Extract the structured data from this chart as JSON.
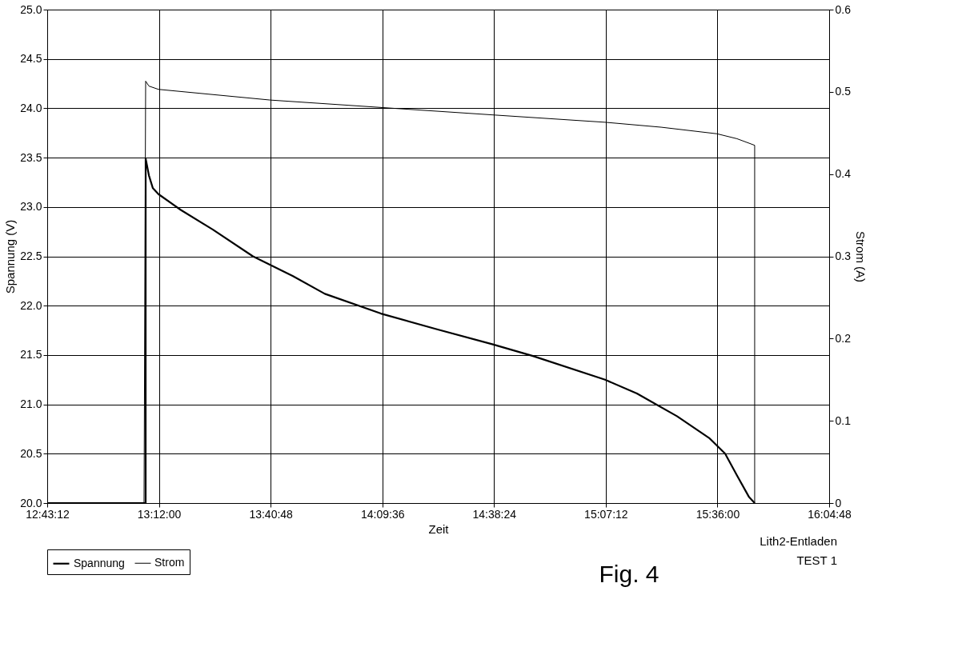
{
  "chart_data": {
    "type": "line",
    "xlabel": "Zeit",
    "ylabel": "Spannung (V)",
    "y2label": "Strom (A)",
    "annotations": [
      "Lith2-Entladen",
      "TEST 1",
      "Fig. 4"
    ],
    "series": [
      {
        "name": "Spannung",
        "color": "#000000",
        "x": [
          12.72,
          13.143,
          13.143,
          13.157,
          13.174,
          13.198,
          13.294,
          13.432,
          13.604,
          13.776,
          13.913,
          14.154,
          14.395,
          14.632,
          14.807,
          15.117,
          15.254,
          15.426,
          15.564,
          15.633,
          15.684,
          15.736,
          15.76
        ],
        "values": [
          20.0,
          20.0,
          23.49,
          23.32,
          23.19,
          23.13,
          22.97,
          22.77,
          22.5,
          22.3,
          22.12,
          21.92,
          21.76,
          21.61,
          21.49,
          21.25,
          21.11,
          20.88,
          20.66,
          20.5,
          20.28,
          20.06,
          20.0
        ]
      },
      {
        "name": "Strom",
        "color": "#000000",
        "axis": "y2",
        "x": [
          12.72,
          13.136,
          13.143,
          13.157,
          13.198,
          13.679,
          14.154,
          14.632,
          15.117,
          15.358,
          15.598,
          15.684,
          15.76,
          15.76
        ],
        "values": [
          0,
          0,
          0.513,
          0.507,
          0.503,
          0.49,
          0.481,
          0.472,
          0.463,
          0.457,
          0.449,
          0.443,
          0.435,
          0
        ]
      }
    ],
    "xlim": [
      12.72,
      16.08
    ],
    "xticks": [
      {
        "value": 12.72,
        "label": "12:43:12"
      },
      {
        "value": 13.2,
        "label": "13:12:00"
      },
      {
        "value": 13.68,
        "label": "13:40:48"
      },
      {
        "value": 14.16,
        "label": "14:09:36"
      },
      {
        "value": 14.64,
        "label": "14:38:24"
      },
      {
        "value": 15.12,
        "label": "15:07:12"
      },
      {
        "value": 15.6,
        "label": "15:36:00"
      },
      {
        "value": 16.08,
        "label": "16:04:48"
      }
    ],
    "ylim": [
      20.0,
      25.0
    ],
    "yticks": [
      {
        "value": 20,
        "label": "20.0"
      },
      {
        "value": 20.5,
        "label": "20.5"
      },
      {
        "value": 21,
        "label": "21.0"
      },
      {
        "value": 21.5,
        "label": "21.5"
      },
      {
        "value": 22,
        "label": "22.0"
      },
      {
        "value": 22.5,
        "label": "22.5"
      },
      {
        "value": 23,
        "label": "23.0"
      },
      {
        "value": 23.5,
        "label": "23.5"
      },
      {
        "value": 24,
        "label": "24.0"
      },
      {
        "value": 24.5,
        "label": "24.5"
      },
      {
        "value": 25,
        "label": "25.0"
      }
    ],
    "y2lim": [
      0,
      0.6
    ],
    "y2ticks": [
      0,
      0.1,
      0.2,
      0.3,
      0.4,
      0.5,
      0.6
    ],
    "grid": true,
    "legend": "bottom left"
  }
}
